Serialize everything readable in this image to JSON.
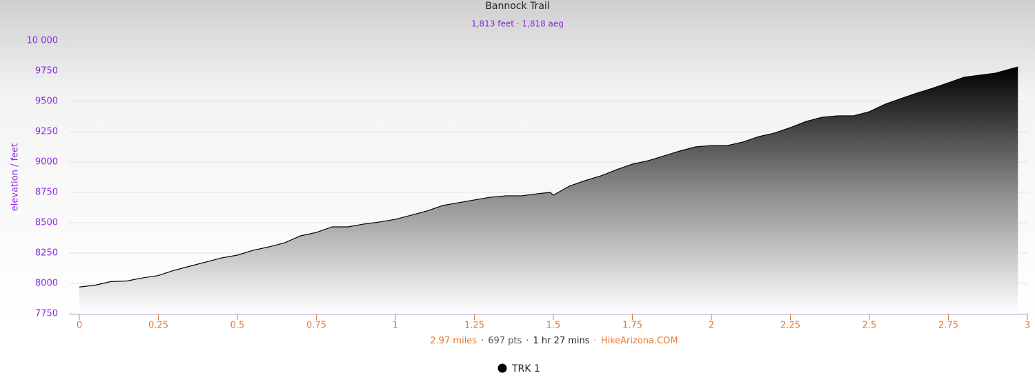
{
  "chart_data": {
    "type": "area",
    "title": "Bannock Trail",
    "subtitle": "1,813 feet · 1,818 aeg",
    "y_label": "elevation / feet",
    "x_label_parts": [
      "2.97 miles",
      "697 pts",
      "1 hr 27 mins",
      "HikeArizona.COM"
    ],
    "x_label_colors": [
      "#e8772e",
      "#555555",
      "#222222",
      "#e8772e"
    ],
    "x_label_separator": "·",
    "xlim": [
      0,
      3
    ],
    "xticks": [
      0,
      0.25,
      0.5,
      0.75,
      1,
      1.25,
      1.5,
      1.75,
      2,
      2.25,
      2.5,
      2.75,
      3
    ],
    "ylim": [
      7750,
      10000
    ],
    "yticks": [
      7750,
      8000,
      8250,
      8500,
      8750,
      9000,
      9250,
      9500,
      9750,
      {
        "value": 10000,
        "label": "10 000"
      }
    ],
    "grid": true,
    "legend": "bottom",
    "series": [
      {
        "name": "TRK 1",
        "color": "#000000",
        "x": [
          0,
          0.05,
          0.1,
          0.15,
          0.2,
          0.25,
          0.3,
          0.35,
          0.4,
          0.45,
          0.5,
          0.55,
          0.6,
          0.65,
          0.7,
          0.75,
          0.8,
          0.85,
          0.9,
          0.95,
          1,
          1.05,
          1.1,
          1.15,
          1.2,
          1.25,
          1.3,
          1.35,
          1.4,
          1.45,
          1.49,
          1.5,
          1.55,
          1.6,
          1.65,
          1.7,
          1.75,
          1.8,
          1.85,
          1.9,
          1.95,
          2,
          2.05,
          2.1,
          2.15,
          2.2,
          2.25,
          2.3,
          2.35,
          2.4,
          2.45,
          2.5,
          2.55,
          2.6,
          2.65,
          2.7,
          2.75,
          2.8,
          2.85,
          2.9,
          2.97
        ],
        "values": [
          7970,
          7985,
          8015,
          8020,
          8045,
          8065,
          8108,
          8142,
          8176,
          8210,
          8233,
          8273,
          8301,
          8335,
          8392,
          8420,
          8466,
          8466,
          8489,
          8506,
          8528,
          8562,
          8597,
          8642,
          8665,
          8688,
          8710,
          8722,
          8722,
          8739,
          8750,
          8727,
          8801,
          8847,
          8886,
          8937,
          8983,
          9011,
          9051,
          9091,
          9125,
          9136,
          9136,
          9165,
          9210,
          9239,
          9284,
          9335,
          9369,
          9381,
          9381,
          9415,
          9477,
          9523,
          9568,
          9608,
          9653,
          9699,
          9716,
          9733,
          9784
        ]
      }
    ]
  }
}
